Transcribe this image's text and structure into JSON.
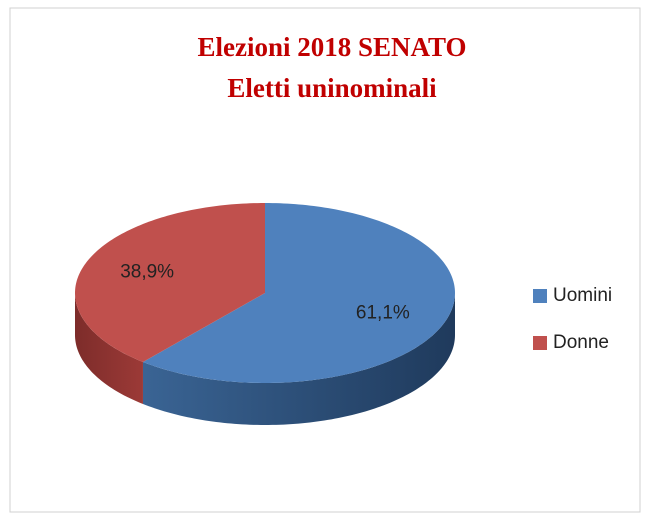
{
  "chart_data": {
    "type": "pie3d",
    "title": [
      "Elezioni 2018  SENATO",
      "Eletti uninominali"
    ],
    "categories": [
      "Uomini",
      "Donne"
    ],
    "values": [
      61.1,
      38.9
    ],
    "value_labels": [
      "61,1%",
      "38,9%"
    ],
    "colors": [
      "#4f81bd",
      "#c0504d"
    ],
    "legend": "right"
  }
}
